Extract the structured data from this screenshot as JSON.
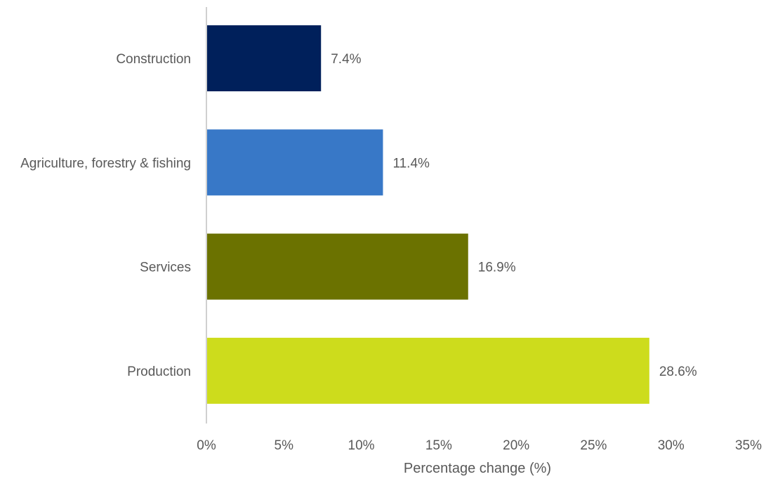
{
  "chart_data": {
    "type": "bar",
    "orientation": "horizontal",
    "categories": [
      "Construction",
      "Agriculture, forestry & fishing",
      "Services",
      "Production"
    ],
    "values": [
      7.4,
      11.4,
      16.9,
      28.6
    ],
    "data_labels": [
      "7.4%",
      "11.4%",
      "16.9%",
      "28.6%"
    ],
    "colors": [
      "#00205b",
      "#3878c7",
      "#6b7200",
      "#cddc1c"
    ],
    "title": "",
    "xlabel": "Percentage change (%)",
    "ylabel": "",
    "xlim": [
      0,
      35
    ],
    "x_ticks": [
      0,
      5,
      10,
      15,
      20,
      25,
      30,
      35
    ],
    "x_tick_labels": [
      "0%",
      "5%",
      "10%",
      "15%",
      "20%",
      "25%",
      "30%",
      "35%"
    ],
    "grid": false,
    "legend": "none"
  }
}
